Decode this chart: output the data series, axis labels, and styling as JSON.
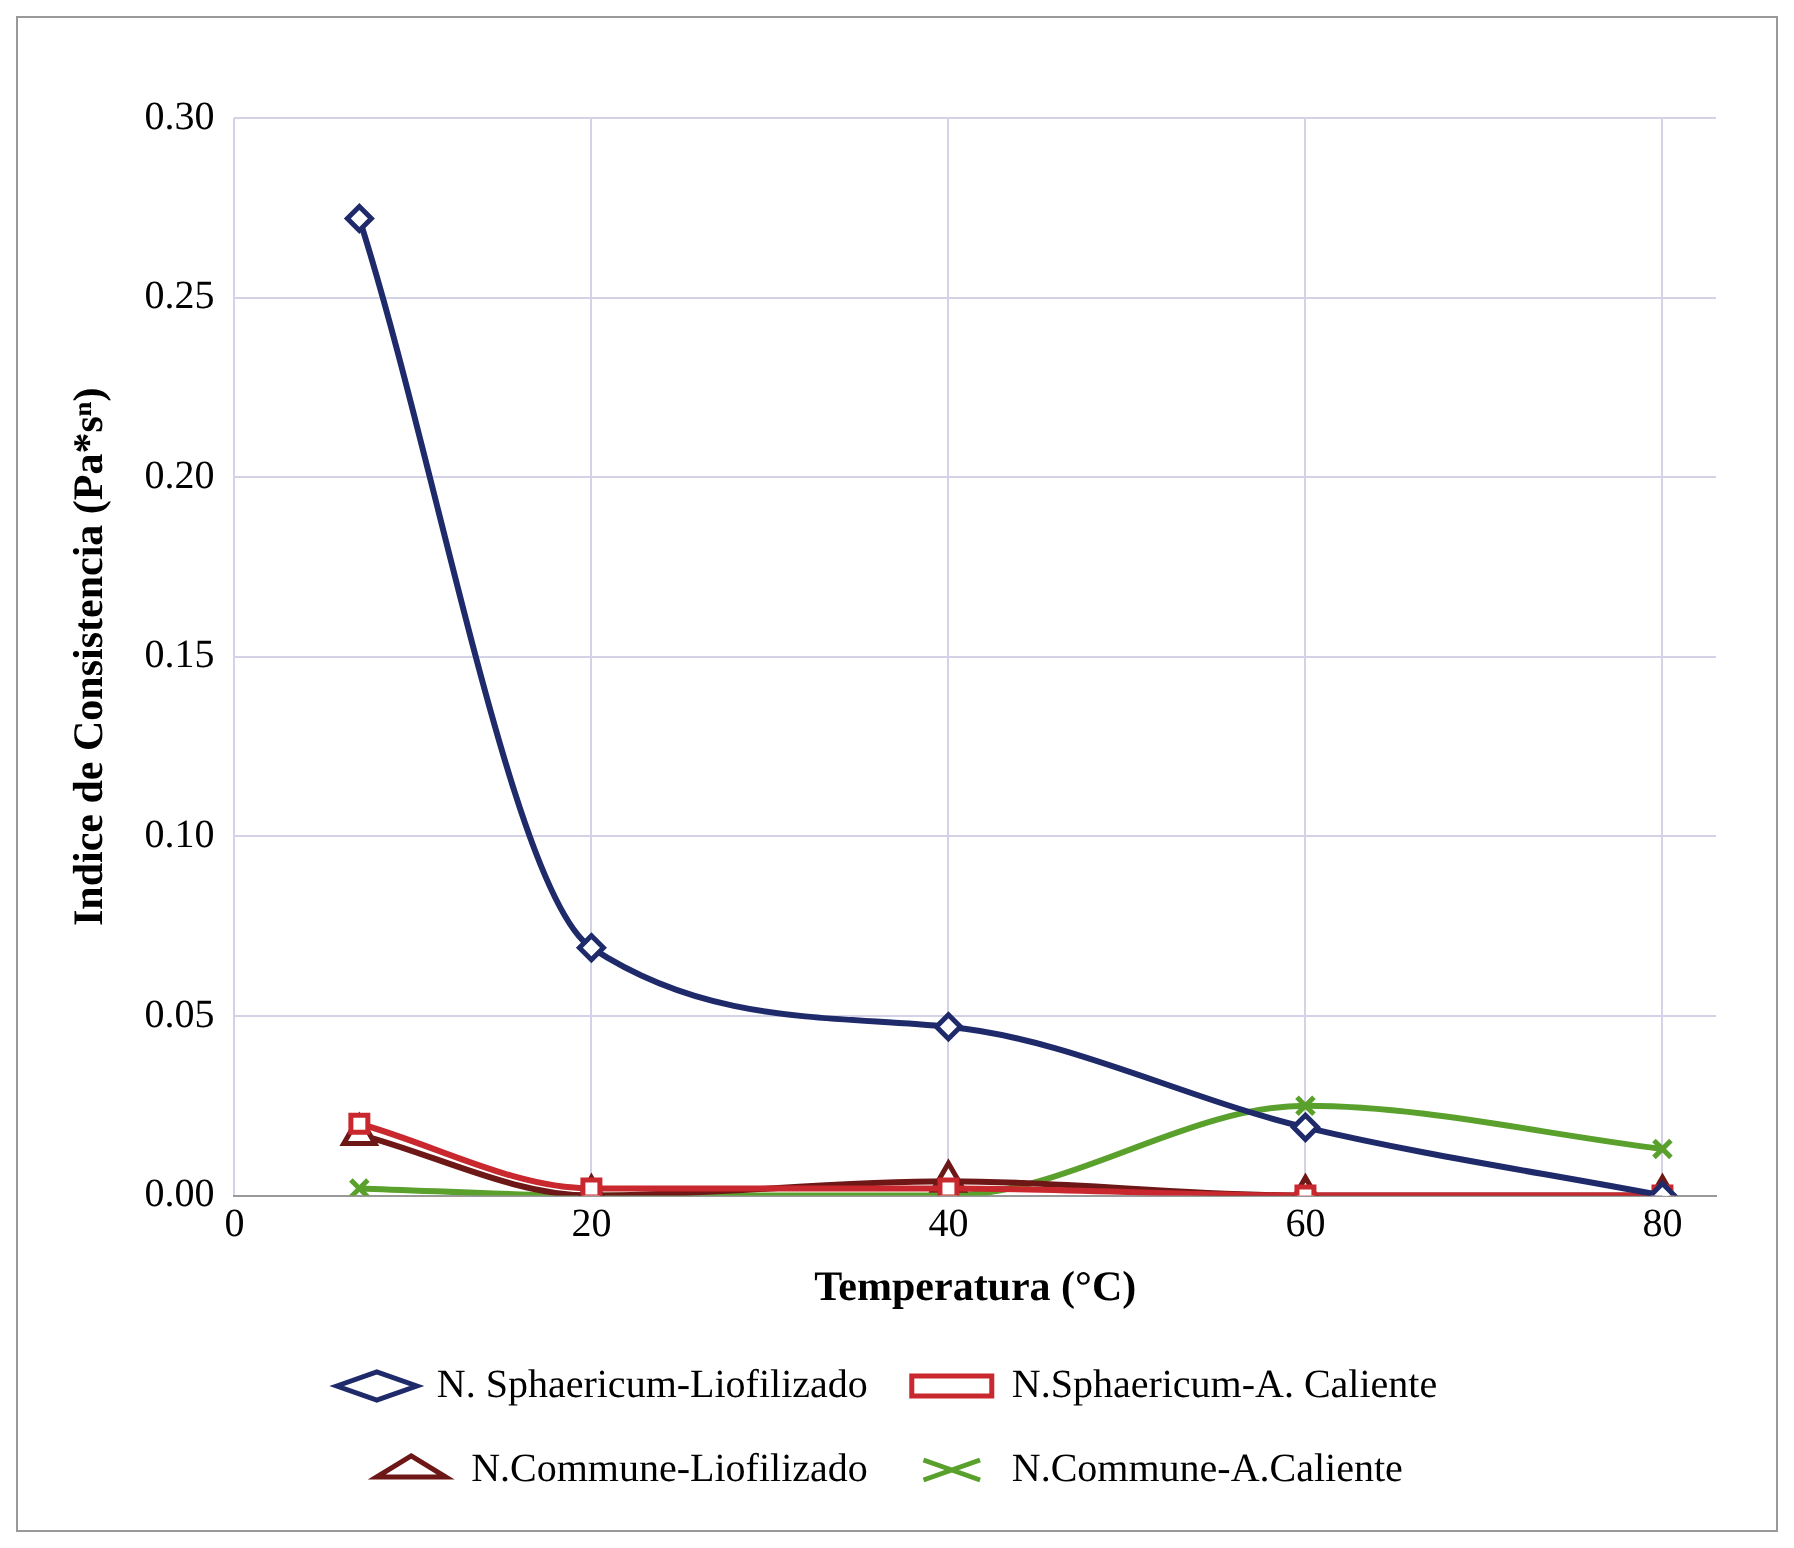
{
  "chart_data": {
    "type": "line",
    "xlabel": "Temperatura (°C)",
    "ylabel": "Indice de Consistencia (Pa*sⁿ)",
    "x": [
      7,
      20,
      40,
      60,
      80
    ],
    "xlim": [
      0,
      83
    ],
    "xticks": [
      0,
      20,
      40,
      60,
      80
    ],
    "ylim": [
      0,
      0.3
    ],
    "yticks": [
      {
        "value": 0,
        "label": "0.00"
      },
      {
        "value": 0.05,
        "label": "0.05"
      },
      {
        "value": 0.1,
        "label": "0.10"
      },
      {
        "value": 0.15,
        "label": "0.15"
      },
      {
        "value": 0.2,
        "label": "0.20"
      },
      {
        "value": 0.25,
        "label": "0.25"
      },
      {
        "value": 0.3,
        "label": "0.30"
      }
    ],
    "grid": true,
    "legend": "bottom",
    "line_style": "solid",
    "series": [
      {
        "name": "N. Sphaericum-Liofilizado",
        "color": "#1f2a6b",
        "marker": "diamond",
        "values": [
          0.272,
          0.069,
          0.047,
          0.019,
          0.0
        ]
      },
      {
        "name": "N.Sphaericum-A. Caliente",
        "color": "#c8282e",
        "marker": "square",
        "values": [
          0.02,
          0.002,
          0.002,
          0.0,
          0.0
        ]
      },
      {
        "name": "N.Commune-Liofilizado",
        "color": "#6e1717",
        "marker": "triangle",
        "values": [
          0.017,
          0.0,
          0.004,
          0.0,
          0.0
        ]
      },
      {
        "name": "N.Commune-A.Caliente",
        "color": "#5aa02c",
        "marker": "cross",
        "values": [
          0.002,
          0.0,
          0.0,
          0.025,
          0.013
        ]
      }
    ]
  }
}
